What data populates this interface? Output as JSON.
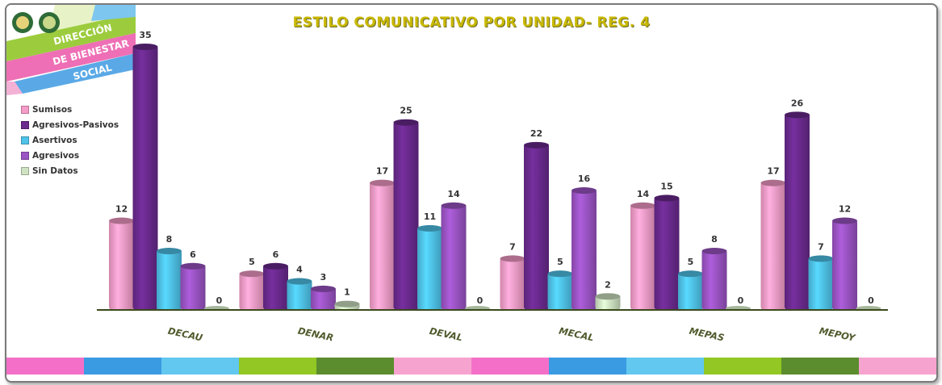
{
  "logo": {
    "lines": [
      "DIRECCIÓN",
      "DE BIENESTAR",
      "SOCIAL"
    ]
  },
  "chart_data": {
    "type": "bar",
    "title": "ESTILO COMUNICATIVO POR UNIDAD- REG. 4",
    "categories": [
      "DECAU",
      "DENAR",
      "DEVAL",
      "MECAL",
      "MEPAS",
      "MEPOY"
    ],
    "series": [
      {
        "name": "Sumisos",
        "color": "#f59cc8",
        "values": [
          12,
          5,
          17,
          7,
          14,
          17
        ]
      },
      {
        "name": "Agresivos-Pasivos",
        "color": "#6a2a8e",
        "values": [
          35,
          6,
          25,
          22,
          15,
          26
        ]
      },
      {
        "name": "Asertivos",
        "color": "#4fc3ea",
        "values": [
          8,
          4,
          11,
          5,
          5,
          7
        ]
      },
      {
        "name": "Agresivos",
        "color": "#9b54c4",
        "values": [
          6,
          3,
          14,
          16,
          8,
          12
        ]
      },
      {
        "name": "Sin Datos",
        "color": "#cfe3c3",
        "values": [
          0,
          1,
          0,
          2,
          0,
          0
        ]
      }
    ],
    "ylim": [
      0,
      35
    ],
    "grid": false,
    "legend_position": "left"
  },
  "bottom_strip_colors": [
    "#f470c8",
    "#3a9be2",
    "#62c8ef",
    "#92c724",
    "#5b8d2e",
    "#f7a3cf",
    "#f470c8",
    "#3a9be2",
    "#62c8ef",
    "#92c724",
    "#5b8d2e",
    "#f7a3cf"
  ]
}
